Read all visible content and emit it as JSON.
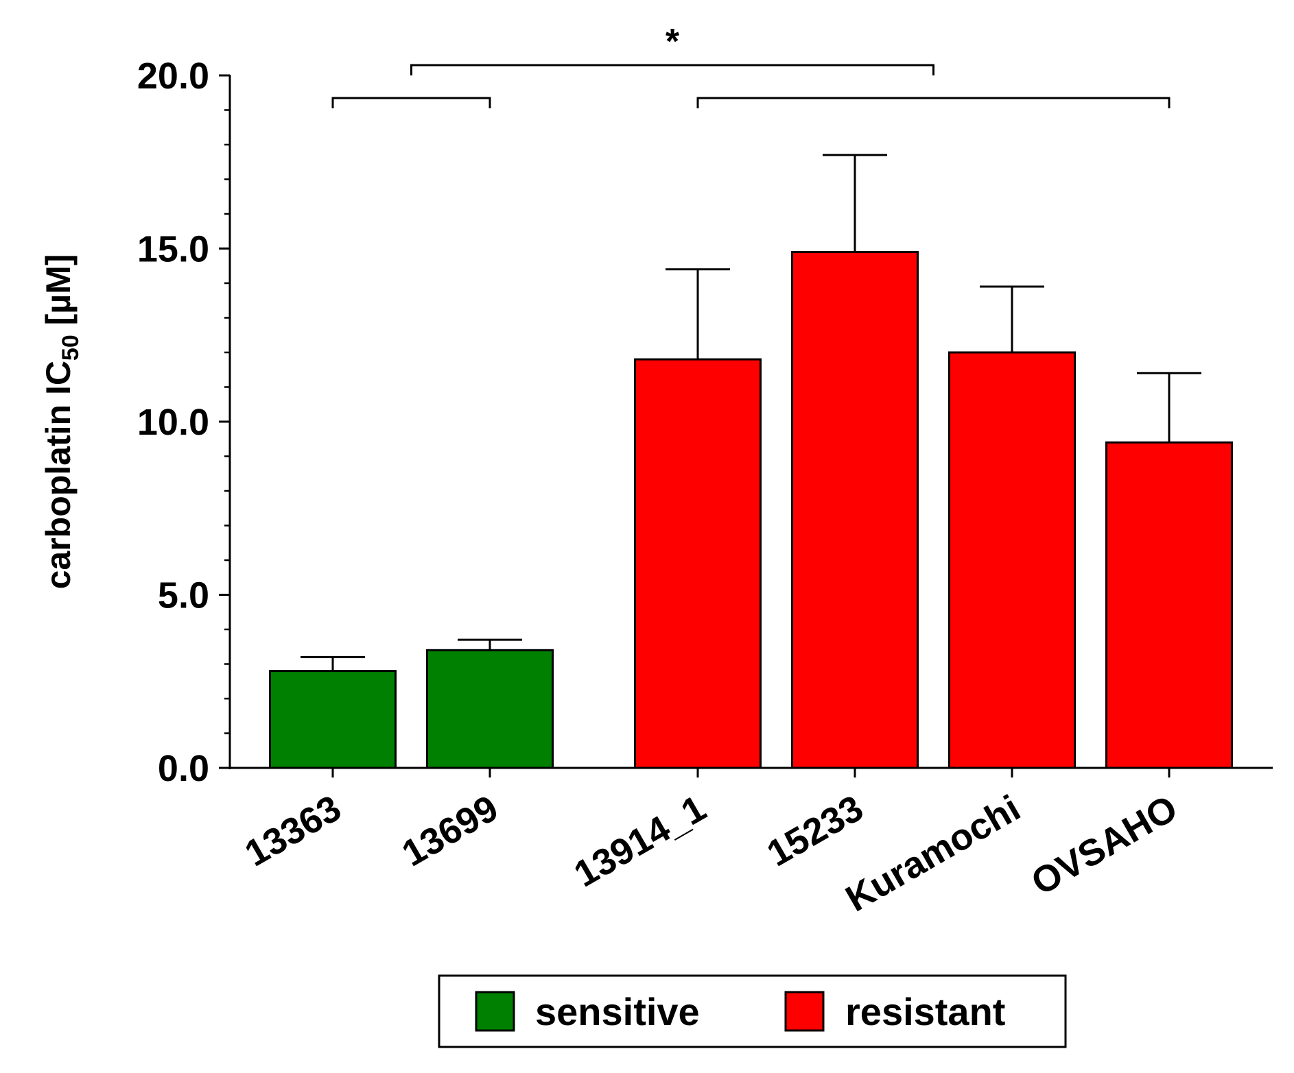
{
  "chart_data": {
    "type": "bar",
    "title": "",
    "xlabel": "",
    "ylabel": "carboplatin IC50 [µM]",
    "ylabel_parts": {
      "main": "carboplatin IC",
      "subscript": "50",
      "unit": " [µM]"
    },
    "ylim": [
      0,
      20
    ],
    "y_ticks": [
      0.0,
      5.0,
      10.0,
      15.0,
      20.0
    ],
    "y_tick_labels": [
      "0.0",
      "5.0",
      "10.0",
      "15.0",
      "20.0"
    ],
    "y_minor_step": 1,
    "categories": [
      "13363",
      "13699",
      "13914_1",
      "15233",
      "Kuramochi",
      "OVSAHO"
    ],
    "values": [
      2.8,
      3.4,
      11.8,
      14.9,
      12.0,
      9.4
    ],
    "errors": [
      0.4,
      0.3,
      2.6,
      2.8,
      1.9,
      2.0
    ],
    "groups": [
      "sensitive",
      "sensitive",
      "resistant",
      "resistant",
      "resistant",
      "resistant"
    ],
    "colors": {
      "sensitive": "#008000",
      "resistant": "#ff0000"
    },
    "legend": [
      {
        "label": "sensitive",
        "group": "sensitive"
      },
      {
        "label": "resistant",
        "group": "resistant"
      }
    ],
    "legend_position": "bottom-center",
    "significance": {
      "label": "*",
      "from_group": [
        0,
        1
      ],
      "to_group": [
        2,
        5
      ]
    },
    "grid": false
  }
}
